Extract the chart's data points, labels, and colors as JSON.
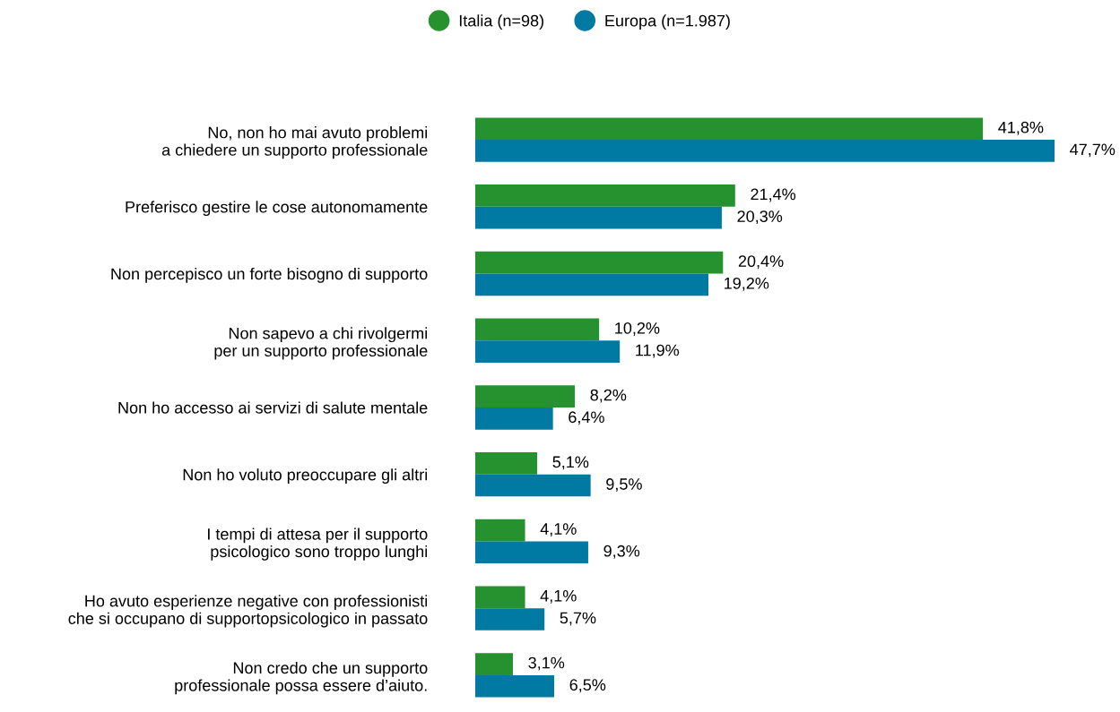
{
  "chart_data": {
    "type": "bar",
    "orientation": "horizontal",
    "categories": [
      "No, non ho mai avuto problemi\na chiedere un supporto professionale",
      "Preferisco gestire le cose autonomamente",
      "Non percepisco un forte bisogno di supporto",
      "Non sapevo a chi rivolgermi\nper un supporto professionale",
      "Non ho accesso ai servizi di salute mentale",
      "Non ho voluto preoccupare gli altri",
      "I tempi di attesa per il supporto\npsicologico sono troppo lunghi",
      "Ho avuto esperienze negative con professionisti\nche si occupano di supportopsicologico in passato",
      "Non credo che un supporto\nprofessionale possa essere d’aiuto."
    ],
    "series": [
      {
        "name": "Italia (n=98)",
        "color": "#25922f",
        "values": [
          41.8,
          21.4,
          20.4,
          10.2,
          8.2,
          5.1,
          4.1,
          4.1,
          3.1
        ],
        "value_labels": [
          "41,8%",
          "21,4%",
          "20,4%",
          "10,2%",
          "8,2%",
          "5,1%",
          "4,1%",
          "4,1%",
          "3,1%"
        ]
      },
      {
        "name": "Europa (n=1.987)",
        "color": "#0079a3",
        "values": [
          47.7,
          20.3,
          19.2,
          11.9,
          6.4,
          9.5,
          9.3,
          5.7,
          6.5
        ],
        "value_labels": [
          "47,7%",
          "20,3%",
          "19,2%",
          "11,9%",
          "6,4%",
          "9,5%",
          "9,3%",
          "5,7%",
          "6,5%"
        ]
      }
    ],
    "legend": "top",
    "grid": false
  }
}
